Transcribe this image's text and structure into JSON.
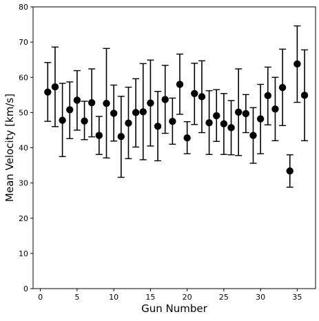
{
  "chart_data": {
    "type": "scatter",
    "title": "",
    "xlabel": "Gun Number",
    "ylabel": "Mean Velocity [km/s]",
    "xlim": [
      -1,
      37.5
    ],
    "ylim": [
      0,
      80
    ],
    "xticks": [
      0,
      5,
      10,
      15,
      20,
      25,
      30,
      35
    ],
    "yticks": [
      0,
      10,
      20,
      30,
      40,
      50,
      60,
      70,
      80
    ],
    "grid": false,
    "legend": "none",
    "marker_color": "#000000",
    "points": [
      {
        "x": 1,
        "y": 55.8,
        "err_low": 47.5,
        "err_high": 64.2
      },
      {
        "x": 2,
        "y": 57.3,
        "err_low": 46.0,
        "err_high": 68.6
      },
      {
        "x": 3,
        "y": 47.8,
        "err_low": 37.5,
        "err_high": 58.3
      },
      {
        "x": 4,
        "y": 50.8,
        "err_low": 42.6,
        "err_high": 58.7
      },
      {
        "x": 5,
        "y": 53.5,
        "err_low": 45.0,
        "err_high": 61.9
      },
      {
        "x": 6,
        "y": 47.6,
        "err_low": 42.3,
        "err_high": 53.2
      },
      {
        "x": 7,
        "y": 52.8,
        "err_low": 43.1,
        "err_high": 62.4
      },
      {
        "x": 8,
        "y": 43.5,
        "err_low": 38.1,
        "err_high": 48.9
      },
      {
        "x": 9,
        "y": 52.6,
        "err_low": 37.1,
        "err_high": 68.2
      },
      {
        "x": 10,
        "y": 49.8,
        "err_low": 41.9,
        "err_high": 57.8
      },
      {
        "x": 11,
        "y": 43.2,
        "err_low": 31.6,
        "err_high": 54.6
      },
      {
        "x": 12,
        "y": 47.0,
        "err_low": 36.9,
        "err_high": 57.2
      },
      {
        "x": 13,
        "y": 50.0,
        "err_low": 40.2,
        "err_high": 59.6
      },
      {
        "x": 14,
        "y": 50.2,
        "err_low": 36.6,
        "err_high": 63.9
      },
      {
        "x": 15,
        "y": 52.7,
        "err_low": 40.5,
        "err_high": 64.9
      },
      {
        "x": 16,
        "y": 46.1,
        "err_low": 36.3,
        "err_high": 56.0
      },
      {
        "x": 17,
        "y": 53.7,
        "err_low": 44.1,
        "err_high": 63.4
      },
      {
        "x": 18,
        "y": 47.5,
        "err_low": 41.0,
        "err_high": 54.1
      },
      {
        "x": 19,
        "y": 58.0,
        "err_low": 49.5,
        "err_high": 66.6
      },
      {
        "x": 20,
        "y": 42.8,
        "err_low": 38.3,
        "err_high": 47.4
      },
      {
        "x": 21,
        "y": 55.4,
        "err_low": 46.6,
        "err_high": 64.0
      },
      {
        "x": 22,
        "y": 54.5,
        "err_low": 44.3,
        "err_high": 64.7
      },
      {
        "x": 23,
        "y": 47.1,
        "err_low": 38.1,
        "err_high": 56.2
      },
      {
        "x": 24,
        "y": 49.1,
        "err_low": 41.8,
        "err_high": 56.5
      },
      {
        "x": 25,
        "y": 46.8,
        "err_low": 38.1,
        "err_high": 55.4
      },
      {
        "x": 26,
        "y": 45.7,
        "err_low": 38.0,
        "err_high": 53.4
      },
      {
        "x": 27,
        "y": 50.1,
        "err_low": 37.8,
        "err_high": 62.4
      },
      {
        "x": 28,
        "y": 49.7,
        "err_low": 44.3,
        "err_high": 55.1
      },
      {
        "x": 29,
        "y": 43.5,
        "err_low": 35.6,
        "err_high": 51.4
      },
      {
        "x": 30,
        "y": 48.2,
        "err_low": 38.3,
        "err_high": 58.0
      },
      {
        "x": 31,
        "y": 54.8,
        "err_low": 46.5,
        "err_high": 62.9
      },
      {
        "x": 32,
        "y": 51.0,
        "err_low": 42.0,
        "err_high": 60.0
      },
      {
        "x": 33,
        "y": 57.1,
        "err_low": 46.3,
        "err_high": 68.0
      },
      {
        "x": 34,
        "y": 33.4,
        "err_low": 28.8,
        "err_high": 38.0
      },
      {
        "x": 35,
        "y": 63.8,
        "err_low": 52.9,
        "err_high": 74.6
      },
      {
        "x": 36,
        "y": 54.9,
        "err_low": 42.0,
        "err_high": 67.8
      }
    ]
  }
}
